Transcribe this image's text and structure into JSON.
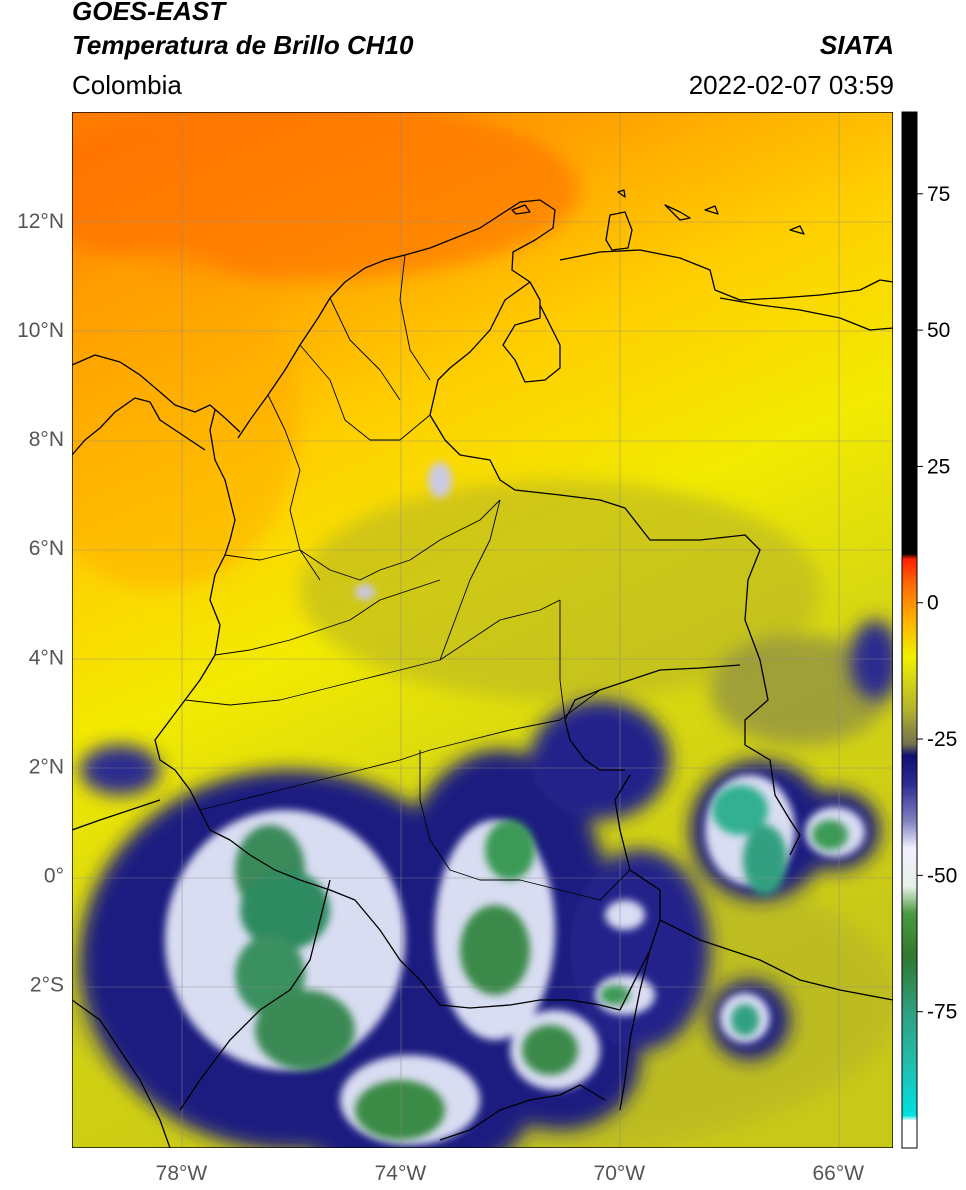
{
  "header": {
    "satellite": "GOES-EAST",
    "product": "Temperatura de Brillo CH10",
    "agency": "SIATA",
    "region": "Colombia",
    "timestamp": "2022-02-07 03:59"
  },
  "map": {
    "lon_range": [
      -80,
      -65
    ],
    "lat_range": [
      -5,
      14
    ],
    "lat_ticks": [
      {
        "value": 12,
        "label": "12°N"
      },
      {
        "value": 10,
        "label": "10°N"
      },
      {
        "value": 8,
        "label": "8°N"
      },
      {
        "value": 6,
        "label": "6°N"
      },
      {
        "value": 4,
        "label": "4°N"
      },
      {
        "value": 2,
        "label": "2°N"
      },
      {
        "value": 0,
        "label": "0°"
      },
      {
        "value": -2,
        "label": "2°S"
      }
    ],
    "lon_ticks": [
      {
        "value": -78,
        "label": "78°W"
      },
      {
        "value": -74,
        "label": "74°W"
      },
      {
        "value": -70,
        "label": "70°W"
      },
      {
        "value": -66,
        "label": "66°W"
      }
    ],
    "gridlines": true
  },
  "colorbar": {
    "range": [
      -100,
      90
    ],
    "ticks": [
      {
        "value": 75,
        "label": "75"
      },
      {
        "value": 50,
        "label": "50"
      },
      {
        "value": 25,
        "label": "25"
      },
      {
        "value": 0,
        "label": "0"
      },
      {
        "value": -25,
        "label": "-25"
      },
      {
        "value": -50,
        "label": "-50"
      },
      {
        "value": -75,
        "label": "-75"
      }
    ],
    "stops": [
      {
        "value": -100,
        "color": "#ffffff"
      },
      {
        "value": -95,
        "color": "#ffffff"
      },
      {
        "value": -94,
        "color": "#00e0e0"
      },
      {
        "value": -85,
        "color": "#20c0b0"
      },
      {
        "value": -75,
        "color": "#30a080"
      },
      {
        "value": -65,
        "color": "#2f7a2f"
      },
      {
        "value": -57,
        "color": "#4a9a40"
      },
      {
        "value": -52,
        "color": "#e8f0e8"
      },
      {
        "value": -45,
        "color": "#f0f0ff"
      },
      {
        "value": -40,
        "color": "#8080c0"
      },
      {
        "value": -33,
        "color": "#2a2a90"
      },
      {
        "value": -28,
        "color": "#101070"
      },
      {
        "value": -26,
        "color": "#707050"
      },
      {
        "value": -20,
        "color": "#b0b030"
      },
      {
        "value": -10,
        "color": "#f0f000"
      },
      {
        "value": -3,
        "color": "#ffb000"
      },
      {
        "value": 3,
        "color": "#ff7000"
      },
      {
        "value": 8,
        "color": "#ff2000"
      },
      {
        "value": 9,
        "color": "#000000"
      },
      {
        "value": 90,
        "color": "#000000"
      }
    ]
  }
}
